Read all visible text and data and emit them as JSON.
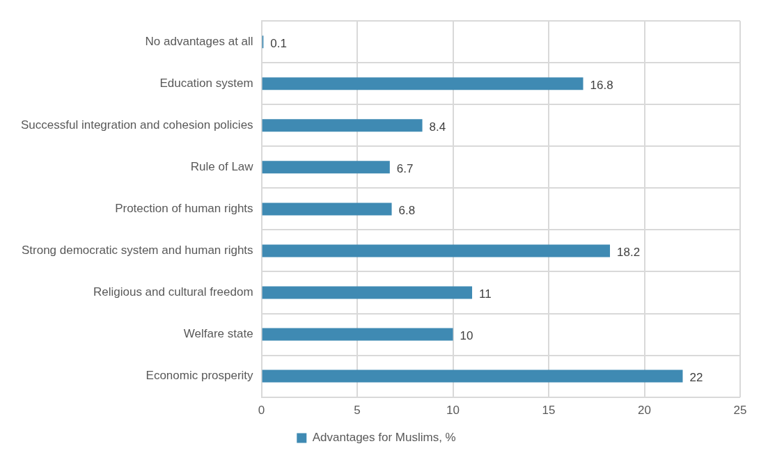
{
  "chart_data": {
    "type": "bar",
    "orientation": "horizontal",
    "categories": [
      "No advantages at all",
      "Education system",
      "Successful integration and cohesion policies",
      "Rule of Law",
      "Protection of human rights",
      "Strong democratic system and human rights",
      "Religious and cultural freedom",
      "Welfare state",
      "Economic prosperity"
    ],
    "series": [
      {
        "name": "Advantages for Muslims, %",
        "color": "#3f8ab3",
        "values": [
          0.1,
          16.8,
          8.4,
          6.7,
          6.8,
          18.2,
          11,
          10,
          22
        ]
      }
    ],
    "xlim": [
      0,
      25
    ],
    "xticks": [
      0,
      5,
      10,
      15,
      20,
      25
    ],
    "grid": true,
    "legend": "bottom",
    "data_labels": true
  }
}
